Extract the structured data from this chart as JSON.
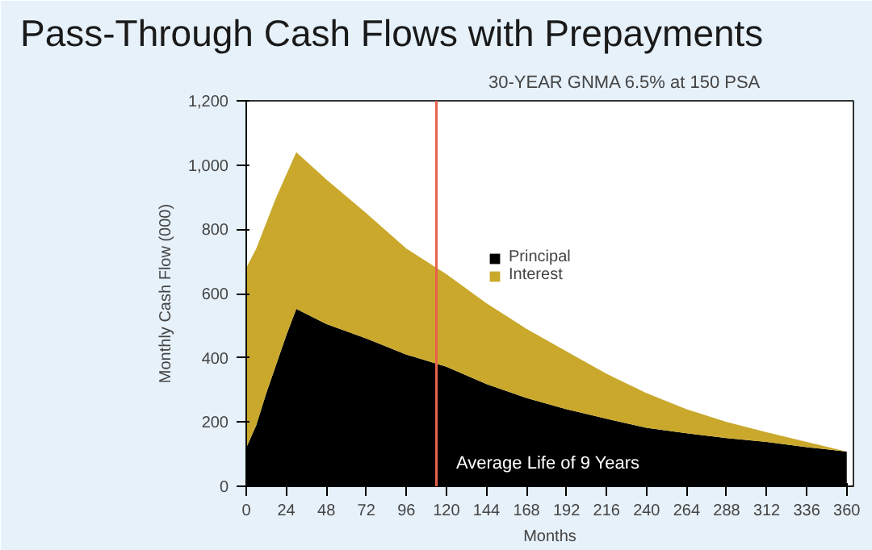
{
  "chart_data": {
    "type": "area",
    "title": "Pass-Through Cash Flows with Prepayments",
    "subtitle": "30-YEAR GNMA 6.5% at 150 PSA",
    "xlabel": "Months",
    "ylabel": "Monthly Cash Flow (000)",
    "stacked": true,
    "x": [
      0,
      6,
      12,
      18,
      24,
      30,
      48,
      72,
      96,
      120,
      144,
      168,
      192,
      216,
      240,
      264,
      288,
      312,
      336,
      360
    ],
    "series": [
      {
        "name": "Principal",
        "color": "#000000",
        "values": [
          120,
          190,
          290,
          380,
          470,
          552,
          505,
          460,
          410,
          372,
          318,
          275,
          240,
          210,
          182,
          165,
          150,
          138,
          122,
          108
        ]
      },
      {
        "name": "Interest",
        "color": "#c9a82c",
        "values": [
          560,
          550,
          530,
          520,
          500,
          488,
          450,
          390,
          330,
          288,
          252,
          215,
          180,
          140,
          108,
          75,
          50,
          30,
          16,
          0
        ]
      }
    ],
    "xlim": [
      0,
      364
    ],
    "xticks": [
      0,
      24,
      48,
      72,
      96,
      120,
      144,
      168,
      192,
      216,
      240,
      264,
      288,
      312,
      336,
      360
    ],
    "ylim": [
      0,
      1200
    ],
    "yticks": [
      0,
      200,
      400,
      600,
      800,
      {
        "value": 1000,
        "label": "1,000"
      },
      {
        "value": 1200,
        "label": "1,200"
      }
    ],
    "ref_lines": [
      {
        "axis": "x",
        "value": 114,
        "color": "#e8604c"
      }
    ],
    "annotations": [
      "Average  Life of 9 Years"
    ],
    "grid": false,
    "legend": "top right"
  }
}
